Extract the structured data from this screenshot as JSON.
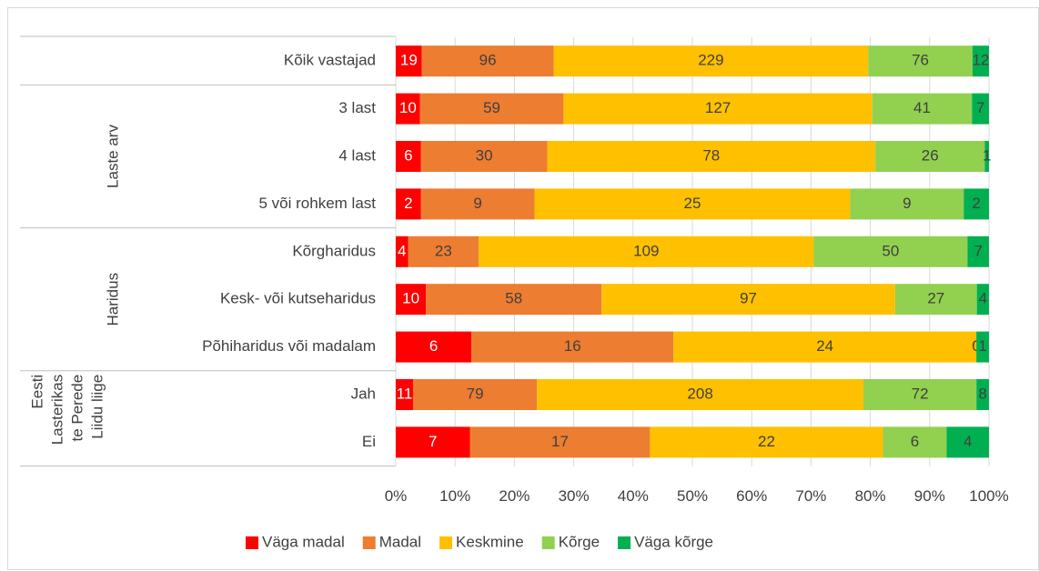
{
  "chart_data": {
    "type": "bar",
    "orientation": "horizontal",
    "stack": "percent",
    "groups": [
      {
        "categories": [
          "Kõik vastajad"
        ]
      },
      {
        "name": [
          "Laste arv"
        ],
        "categories": [
          "3 last",
          "4 last",
          "5 või rohkem last"
        ]
      },
      {
        "name": [
          "Haridus"
        ],
        "categories": [
          "Kõrgharidus",
          "Kesk- või kutseharidus",
          "Põhiharidus või madalam"
        ]
      },
      {
        "name": [
          "Eesti",
          "Lasterikas",
          "te Perede",
          "Liidu liige"
        ],
        "categories": [
          "Jah",
          "Ei"
        ]
      }
    ],
    "series": [
      {
        "name": "Väga madal",
        "color": "#ff0000",
        "values": [
          19,
          10,
          6,
          2,
          4,
          10,
          6,
          11,
          7
        ]
      },
      {
        "name": "Madal",
        "color": "#ed7d31",
        "values": [
          96,
          59,
          30,
          9,
          23,
          58,
          16,
          79,
          17
        ]
      },
      {
        "name": "Keskmine",
        "color": "#ffc000",
        "values": [
          229,
          127,
          78,
          25,
          109,
          97,
          24,
          208,
          22
        ]
      },
      {
        "name": "Kõrge",
        "color": "#92d050",
        "values": [
          76,
          41,
          26,
          9,
          50,
          27,
          0,
          72,
          6
        ]
      },
      {
        "name": "Väga kõrge",
        "color": "#00b050",
        "values": [
          12,
          7,
          1,
          2,
          7,
          4,
          1,
          8,
          4
        ]
      }
    ],
    "xlim": [
      0,
      100
    ],
    "xticks": [
      {
        "value": 0,
        "label": "0%"
      },
      {
        "value": 10,
        "label": "10%"
      },
      {
        "value": 20,
        "label": "20%"
      },
      {
        "value": 30,
        "label": "30%"
      },
      {
        "value": 40,
        "label": "40%"
      },
      {
        "value": 50,
        "label": "50%"
      },
      {
        "value": 60,
        "label": "60%"
      },
      {
        "value": 70,
        "label": "70%"
      },
      {
        "value": 80,
        "label": "80%"
      },
      {
        "value": 90,
        "label": "90%"
      },
      {
        "value": 100,
        "label": "100%"
      }
    ],
    "grid": true,
    "legend": "bottom"
  }
}
